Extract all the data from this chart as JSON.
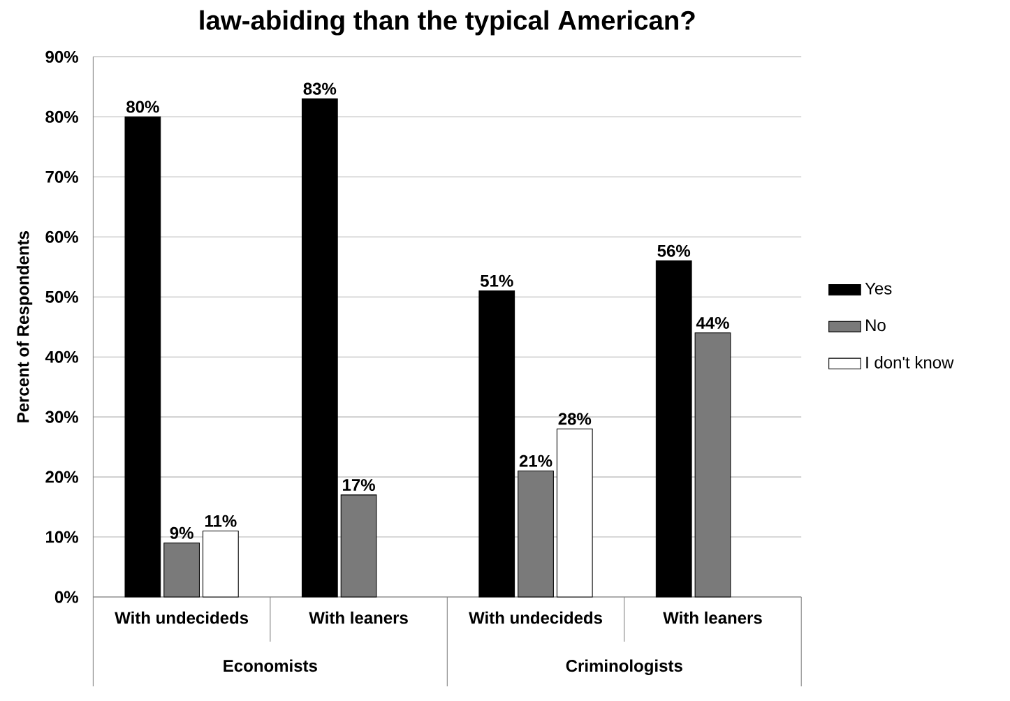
{
  "chart_data": {
    "type": "bar",
    "title": "law-abiding than the typical American?",
    "ylabel": "Percent of Respondents",
    "categories": [
      "With undecideds",
      "With leaners",
      "With undecideds",
      "With leaners"
    ],
    "annotations": [
      "Economists",
      "Criminologists"
    ],
    "series": [
      {
        "name": "Yes",
        "color": "#000000",
        "values": [
          80,
          83,
          51,
          56
        ],
        "value_labels": [
          "80%",
          "83%",
          "51%",
          "56%"
        ]
      },
      {
        "name": "No",
        "color": "#7a7a7a",
        "values": [
          9,
          17,
          21,
          44
        ],
        "value_labels": [
          "9%",
          "17%",
          "21%",
          "44%"
        ]
      },
      {
        "name": "I don't know",
        "color": "#ffffff",
        "values": [
          11,
          null,
          28,
          null
        ],
        "value_labels": [
          "11%",
          null,
          "28%",
          null
        ]
      }
    ],
    "ylim": [
      0,
      90
    ],
    "yticks": [
      {
        "value": 0,
        "label": "0%"
      },
      {
        "value": 10,
        "label": "10%"
      },
      {
        "value": 20,
        "label": "20%"
      },
      {
        "value": 30,
        "label": "30%"
      },
      {
        "value": 40,
        "label": "40%"
      },
      {
        "value": 50,
        "label": "50%"
      },
      {
        "value": 60,
        "label": "60%"
      },
      {
        "value": 70,
        "label": "70%"
      },
      {
        "value": 80,
        "label": "80%"
      },
      {
        "value": 90,
        "label": "90%"
      }
    ],
    "grid": "y",
    "legend": "right"
  }
}
